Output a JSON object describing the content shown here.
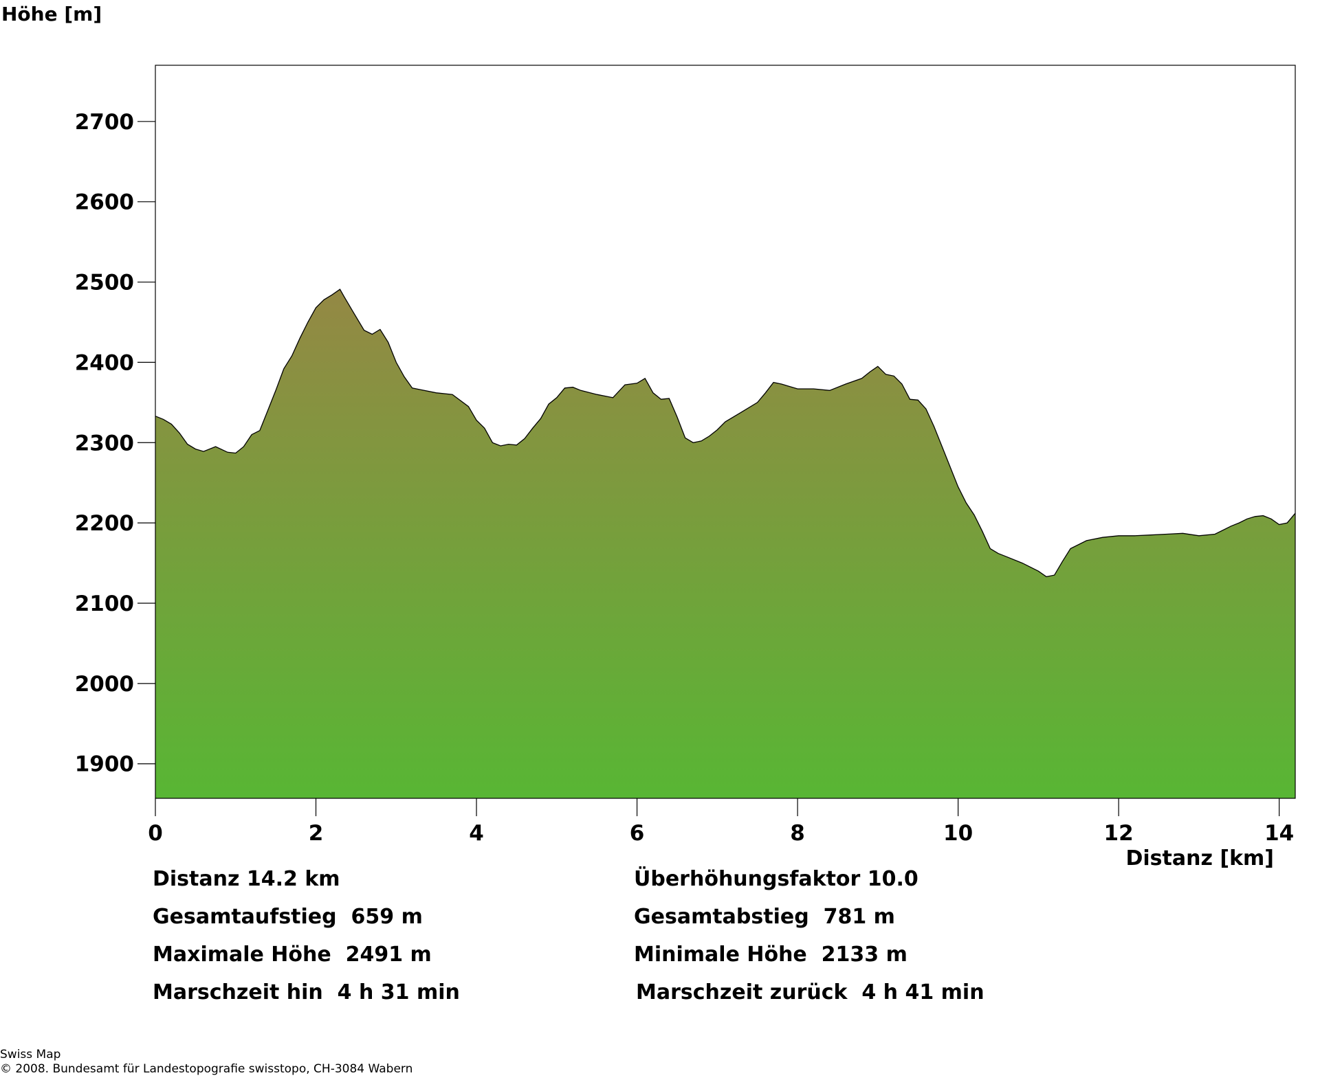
{
  "chart_data": {
    "type": "area",
    "ylabel": "Höhe [m]",
    "xlabel": "Distanz [km]",
    "xlim": [
      0,
      14.2
    ],
    "ylim": [
      1857,
      2770
    ],
    "x_ticks": [
      "0",
      "2",
      "4",
      "6",
      "8",
      "10",
      "12",
      "14"
    ],
    "y_ticks": [
      "1900",
      "2000",
      "2100",
      "2200",
      "2300",
      "2400",
      "2500",
      "2600",
      "2700"
    ],
    "grid": false,
    "series": [
      {
        "x": [
          0,
          0.1,
          0.2,
          0.3,
          0.4,
          0.5,
          0.6,
          0.75,
          0.9,
          1.0,
          1.1,
          1.2,
          1.3,
          1.4,
          1.5,
          1.6,
          1.7,
          1.8,
          1.9,
          2.0,
          2.1,
          2.2,
          2.3,
          2.35,
          2.45,
          2.6,
          2.7,
          2.8,
          2.9,
          3.0,
          3.1,
          3.2,
          3.3,
          3.5,
          3.7,
          3.9,
          4.0,
          4.1,
          4.2,
          4.3,
          4.4,
          4.5,
          4.6,
          4.7,
          4.8,
          4.9,
          5.0,
          5.1,
          5.2,
          5.3,
          5.5,
          5.7,
          5.85,
          6.0,
          6.1,
          6.2,
          6.3,
          6.4,
          6.5,
          6.6,
          6.7,
          6.8,
          6.9,
          7.0,
          7.1,
          7.3,
          7.5,
          7.6,
          7.7,
          7.8,
          8.0,
          8.2,
          8.4,
          8.6,
          8.8,
          8.9,
          9.0,
          9.1,
          9.2,
          9.3,
          9.4,
          9.5,
          9.6,
          9.7,
          9.8,
          9.9,
          10.0,
          10.1,
          10.2,
          10.3,
          10.4,
          10.5,
          10.6,
          10.8,
          11.0,
          11.1,
          11.2,
          11.3,
          11.4,
          11.6,
          11.8,
          12.0,
          12.2,
          12.4,
          12.6,
          12.8,
          13.0,
          13.2,
          13.4,
          13.5,
          13.6,
          13.7,
          13.8,
          13.9,
          14.0,
          14.1,
          14.2
        ],
        "y": [
          2333,
          2329,
          2323,
          2312,
          2298,
          2292,
          2289,
          2295,
          2288,
          2287,
          2295,
          2310,
          2315,
          2340,
          2365,
          2392,
          2408,
          2430,
          2450,
          2468,
          2478,
          2484,
          2491,
          2482,
          2465,
          2440,
          2435,
          2441,
          2425,
          2400,
          2382,
          2368,
          2366,
          2362,
          2360,
          2345,
          2328,
          2318,
          2300,
          2296,
          2298,
          2297,
          2305,
          2318,
          2330,
          2348,
          2356,
          2368,
          2369,
          2365,
          2360,
          2356,
          2372,
          2374,
          2380,
          2362,
          2354,
          2355,
          2332,
          2306,
          2300,
          2302,
          2308,
          2316,
          2326,
          2338,
          2350,
          2362,
          2375,
          2373,
          2367,
          2367,
          2365,
          2373,
          2380,
          2388,
          2395,
          2385,
          2383,
          2373,
          2354,
          2353,
          2342,
          2320,
          2295,
          2270,
          2245,
          2225,
          2210,
          2190,
          2168,
          2162,
          2158,
          2150,
          2140,
          2133,
          2135,
          2152,
          2168,
          2178,
          2182,
          2184,
          2184,
          2185,
          2186,
          2187,
          2184,
          2186,
          2196,
          2200,
          2205,
          2208,
          2209,
          2205,
          2198,
          2200,
          2212
        ]
      }
    ]
  },
  "stats": {
    "distance": "Distanz 14.2 km",
    "exaggeration": "Überhöhungsfaktor 10.0",
    "ascent": "Gesamtaufstieg  659 m",
    "descent": "Gesamtabstieg  781 m",
    "max_height": "Maximale Höhe  2491 m",
    "min_height": "Minimale Höhe  2133 m",
    "time_there": "Marschzeit hin  4 h 31 min",
    "time_back": "Marschzeit zurück  4 h 41 min"
  },
  "footer": {
    "line1": "Swiss Map",
    "line2": "© 2008. Bundesamt für Landestopografie swisstopo, CH-3084 Wabern"
  },
  "colors": {
    "fill_top": "#948844",
    "fill_bottom": "#58b634",
    "outline": "#000000"
  }
}
